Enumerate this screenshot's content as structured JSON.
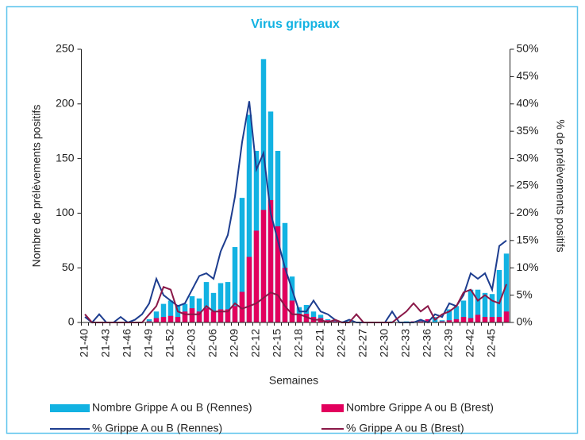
{
  "chart_data": {
    "type": "bar-line",
    "title": "Virus grippaux",
    "x_label": "Semaines",
    "y_label": "Nombre de prélèvements positifs",
    "y2_label": "% de prélèvements positifs",
    "categories": [
      "21-40",
      null,
      null,
      "21-43",
      null,
      null,
      "21-46",
      null,
      null,
      "21-49",
      null,
      null,
      "21-52",
      null,
      null,
      "22-03",
      null,
      null,
      "22-06",
      null,
      null,
      "22-09",
      null,
      null,
      "22-12",
      null,
      null,
      "22-15",
      null,
      null,
      "22-18",
      null,
      null,
      "22-21",
      null,
      null,
      "22-24",
      null,
      null,
      "22-27",
      null,
      null,
      "22-30",
      null,
      null,
      "22-33",
      null,
      null,
      "22-36",
      null,
      null,
      "22-39",
      null,
      null,
      "22-42",
      null,
      null,
      "22-45",
      null,
      null
    ],
    "ylim": [
      0,
      250
    ],
    "yticks": [
      0,
      50,
      100,
      150,
      200,
      250
    ],
    "y2lim": [
      0,
      50
    ],
    "y2ticks": [
      {
        "value": 0,
        "label": "0%"
      },
      {
        "value": 5,
        "label": "5%"
      },
      {
        "value": 10,
        "label": "10%"
      },
      {
        "value": 15,
        "label": "15%"
      },
      {
        "value": 20,
        "label": "20%"
      },
      {
        "value": 25,
        "label": "25%"
      },
      {
        "value": 30,
        "label": "30%"
      },
      {
        "value": 35,
        "label": "35%"
      },
      {
        "value": 40,
        "label": "40%"
      },
      {
        "value": 45,
        "label": "45%"
      },
      {
        "value": 50,
        "label": "50%"
      }
    ],
    "series": [
      {
        "name": "Nombre Grippe A ou B (Rennes)",
        "kind": "bar",
        "color": "#12b2e2",
        "values": [
          0,
          0,
          0,
          0,
          0,
          0,
          0,
          0,
          0,
          3,
          10,
          17,
          20,
          16,
          17,
          24,
          22,
          37,
          27,
          36,
          37,
          69,
          114,
          190,
          157,
          241,
          193,
          157,
          91,
          42,
          14,
          16,
          10,
          7,
          3,
          2,
          1,
          1,
          0,
          0,
          0,
          0,
          0,
          1,
          0,
          1,
          1,
          2,
          1,
          5,
          2,
          12,
          15,
          20,
          30,
          30,
          27,
          26,
          48,
          63
        ]
      },
      {
        "name": "Nombre Grippe A ou B (Brest)",
        "kind": "bar",
        "color": "#e2005d",
        "values": [
          0,
          0,
          0,
          0,
          0,
          0,
          0,
          0,
          0,
          1,
          4,
          5,
          6,
          5,
          10,
          13,
          10,
          13,
          10,
          12,
          12,
          15,
          28,
          60,
          84,
          103,
          112,
          88,
          50,
          20,
          8,
          8,
          5,
          4,
          2,
          1,
          0,
          0,
          0,
          0,
          0,
          0,
          0,
          0,
          0,
          0,
          1,
          1,
          3,
          0,
          1,
          2,
          3,
          5,
          4,
          7,
          5,
          5,
          5,
          10
        ]
      },
      {
        "name": "% Grippe A ou B (Rennes)",
        "kind": "line",
        "axis": "y2",
        "color": "#1d3d8f",
        "values": [
          1,
          0,
          1.5,
          0,
          0,
          1,
          0,
          0.5,
          1.5,
          3.5,
          8,
          5,
          4,
          3,
          3.5,
          6,
          8.5,
          9,
          8,
          13,
          16,
          23,
          33,
          40.5,
          28,
          31,
          20,
          15,
          10,
          6,
          2,
          2,
          4,
          2,
          1.5,
          0.5,
          0,
          0.5,
          0,
          0,
          0,
          0,
          0,
          2,
          0,
          0,
          0,
          0.5,
          0,
          1.5,
          1,
          3.5,
          3,
          5,
          9,
          8,
          9,
          6,
          14,
          15
        ]
      },
      {
        "name": "% Grippe A ou B (Brest)",
        "kind": "line",
        "axis": "y2",
        "color": "#8a1848",
        "values": [
          1.5,
          0,
          0,
          0,
          0,
          0,
          0,
          0,
          0,
          1.5,
          3,
          6.5,
          6,
          2,
          1.5,
          1.5,
          1.5,
          3,
          2,
          2,
          2,
          3.5,
          2.5,
          3,
          3.5,
          4.5,
          5.5,
          5,
          3,
          1.5,
          1.5,
          1,
          0.5,
          0.5,
          0,
          0.5,
          0,
          0,
          1.5,
          0,
          0,
          0,
          0,
          0,
          1,
          2,
          3.5,
          2,
          3,
          0.5,
          1.5,
          2,
          3,
          5.5,
          6,
          4,
          5,
          4,
          3.5,
          7
        ]
      }
    ]
  }
}
